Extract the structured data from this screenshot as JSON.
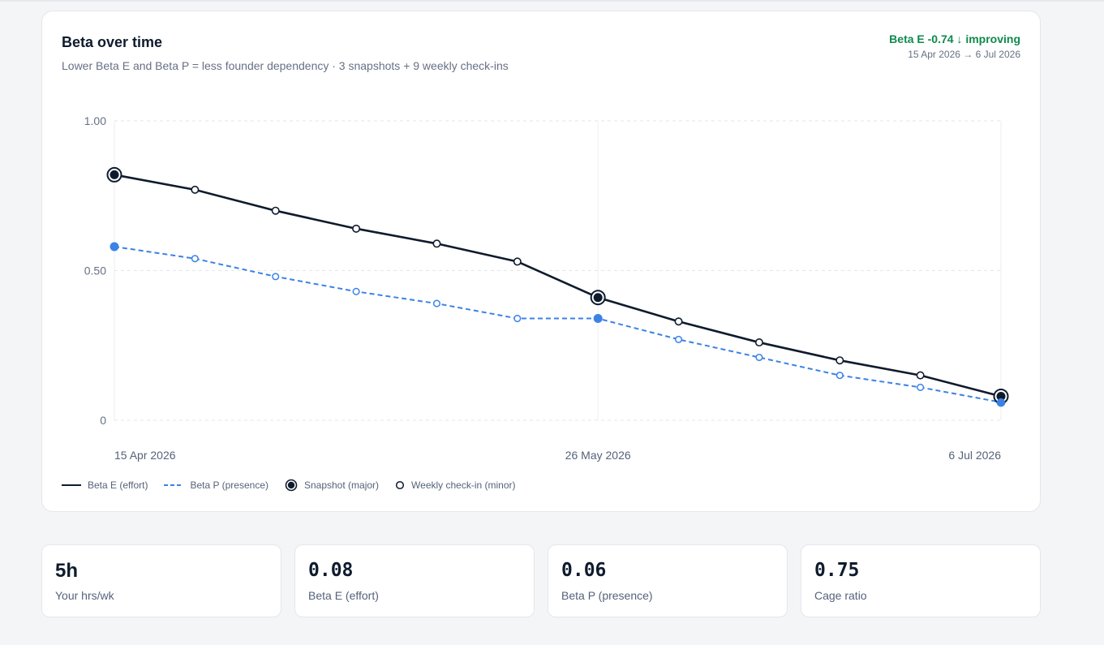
{
  "card": {
    "title": "Beta over time",
    "subtitle": "Lower Beta E and Beta P = less founder dependency · 3 snapshots + 9 weekly check-ins",
    "delta": "Beta E -0.74 ↓ improving",
    "range": "15 Apr 2026 → 6 Jul 2026"
  },
  "chart_data": {
    "type": "line",
    "x": [
      "15 Apr 2026",
      "22 Apr 2026",
      "29 Apr 2026",
      "6 May 2026",
      "13 May 2026",
      "20 May 2026",
      "26 May 2026",
      "2 Jun 2026",
      "9 Jun 2026",
      "16 Jun 2026",
      "23 Jun 2026",
      "6 Jul 2026"
    ],
    "x_ticks": [
      "15 Apr 2026",
      "26 May 2026",
      "6 Jul 2026"
    ],
    "y_ticks": [
      "1.00",
      "0.50",
      "0"
    ],
    "ylim": [
      0,
      1
    ],
    "grid": true,
    "snapshot_indices": [
      0,
      6,
      11
    ],
    "series": [
      {
        "name": "Beta E (effort)",
        "color": "#0f1b2d",
        "style": "solid",
        "values": [
          0.82,
          0.77,
          0.7,
          0.64,
          0.59,
          0.53,
          0.41,
          0.33,
          0.26,
          0.2,
          0.15,
          0.08
        ]
      },
      {
        "name": "Beta P (presence)",
        "color": "#3b82e6",
        "style": "dashed",
        "values": [
          0.58,
          0.54,
          0.48,
          0.43,
          0.39,
          0.34,
          0.34,
          0.27,
          0.21,
          0.15,
          0.11,
          0.06
        ]
      }
    ],
    "legend": {
      "position": "bottom-left",
      "items": [
        "Beta E (effort)",
        "Beta P (presence)",
        "Snapshot (major)",
        "Weekly check-in (minor)"
      ]
    }
  },
  "stats": [
    {
      "value": "5h",
      "label": "Your hrs/wk"
    },
    {
      "value": "0.08",
      "label": "Beta E (effort)"
    },
    {
      "value": "0.06",
      "label": "Beta P (presence)"
    },
    {
      "value": "0.75",
      "label": "Cage ratio"
    }
  ]
}
